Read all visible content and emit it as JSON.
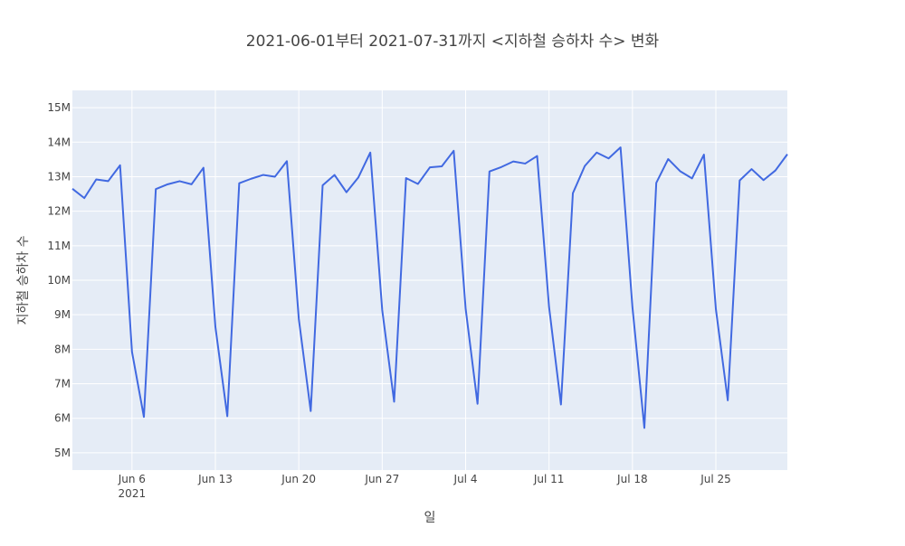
{
  "chart_data": {
    "type": "line",
    "title": "2021-06-01부터 2021-07-31까지 <지하철 승하차 수> 변화",
    "xlabel": "일",
    "ylabel": "지하철 승하차 수",
    "x_range": [
      "2021-06-01",
      "2021-07-31"
    ],
    "ylim": [
      4500000,
      15500000
    ],
    "grid": true,
    "background": "#e5ecf6",
    "line_color": "#4169e1",
    "x_ticks": [
      {
        "date": "2021-06-06",
        "label": "Jun 6",
        "sublabel": "2021"
      },
      {
        "date": "2021-06-13",
        "label": "Jun 13"
      },
      {
        "date": "2021-06-20",
        "label": "Jun 20"
      },
      {
        "date": "2021-06-27",
        "label": "Jun 27"
      },
      {
        "date": "2021-07-04",
        "label": "Jul 4"
      },
      {
        "date": "2021-07-11",
        "label": "Jul 11"
      },
      {
        "date": "2021-07-18",
        "label": "Jul 18"
      },
      {
        "date": "2021-07-25",
        "label": "Jul 25"
      }
    ],
    "y_ticks": [
      {
        "value": 5000000,
        "label": "5M"
      },
      {
        "value": 6000000,
        "label": "6M"
      },
      {
        "value": 7000000,
        "label": "7M"
      },
      {
        "value": 8000000,
        "label": "8M"
      },
      {
        "value": 9000000,
        "label": "9M"
      },
      {
        "value": 10000000,
        "label": "10M"
      },
      {
        "value": 11000000,
        "label": "11M"
      },
      {
        "value": 12000000,
        "label": "12M"
      },
      {
        "value": 13000000,
        "label": "13M"
      },
      {
        "value": 14000000,
        "label": "14M"
      },
      {
        "value": 15000000,
        "label": "15M"
      }
    ],
    "series": [
      {
        "x": [
          "2021-06-01",
          "2021-06-02",
          "2021-06-03",
          "2021-06-04",
          "2021-06-05",
          "2021-06-06",
          "2021-06-07",
          "2021-06-08",
          "2021-06-09",
          "2021-06-10",
          "2021-06-11",
          "2021-06-12",
          "2021-06-13",
          "2021-06-14",
          "2021-06-15",
          "2021-06-16",
          "2021-06-17",
          "2021-06-18",
          "2021-06-19",
          "2021-06-20",
          "2021-06-21",
          "2021-06-22",
          "2021-06-23",
          "2021-06-24",
          "2021-06-25",
          "2021-06-26",
          "2021-06-27",
          "2021-06-28",
          "2021-06-29",
          "2021-06-30",
          "2021-07-01",
          "2021-07-02",
          "2021-07-03",
          "2021-07-04",
          "2021-07-05",
          "2021-07-06",
          "2021-07-07",
          "2021-07-08",
          "2021-07-09",
          "2021-07-10",
          "2021-07-11",
          "2021-07-12",
          "2021-07-13",
          "2021-07-14",
          "2021-07-15",
          "2021-07-16",
          "2021-07-17",
          "2021-07-18",
          "2021-07-19",
          "2021-07-20",
          "2021-07-21",
          "2021-07-22",
          "2021-07-23",
          "2021-07-24",
          "2021-07-25",
          "2021-07-26",
          "2021-07-27",
          "2021-07-28",
          "2021-07-29",
          "2021-07-30",
          "2021-07-31"
        ],
        "values": [
          12650000,
          12380000,
          12920000,
          12870000,
          13330000,
          7930000,
          6040000,
          12640000,
          12780000,
          12870000,
          12780000,
          13260000,
          8650000,
          6060000,
          12810000,
          12940000,
          13050000,
          13000000,
          13450000,
          8880000,
          6210000,
          12750000,
          13050000,
          12550000,
          12980000,
          13700000,
          9140000,
          6480000,
          12960000,
          12790000,
          13270000,
          13300000,
          13750000,
          9180000,
          6420000,
          13150000,
          13280000,
          13440000,
          13380000,
          13600000,
          9230000,
          6400000,
          12520000,
          13310000,
          13700000,
          13530000,
          13850000,
          9220000,
          5720000,
          12820000,
          13510000,
          13160000,
          12950000,
          13640000,
          9170000,
          6520000,
          12890000,
          13220000,
          12900000,
          13180000,
          13650000
        ]
      }
    ]
  }
}
